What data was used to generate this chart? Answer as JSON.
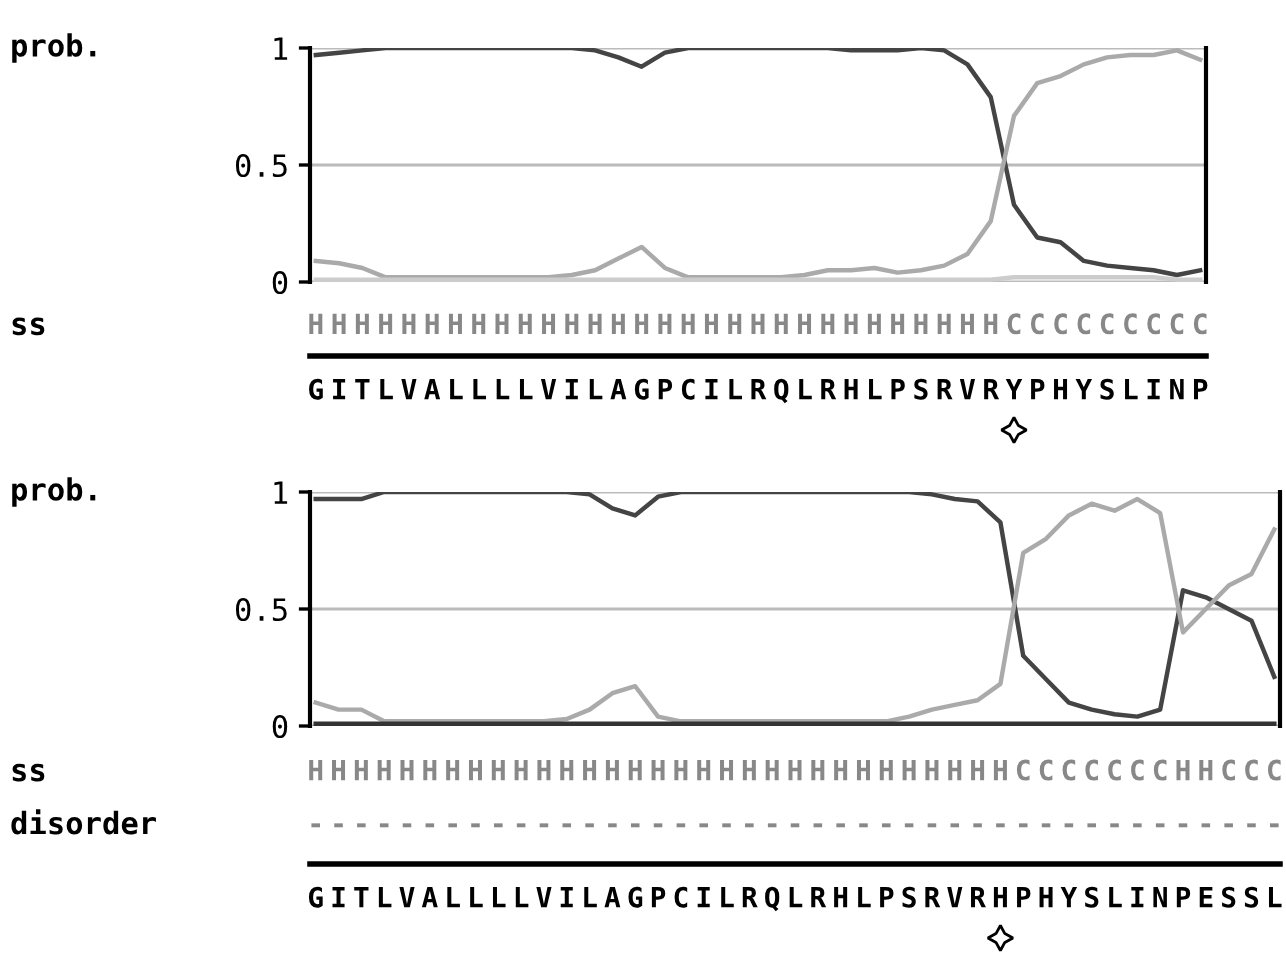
{
  "chart_data": [
    {
      "type": "line",
      "ylabel": "prob.",
      "ylim": [
        0,
        1
      ],
      "yticks": [
        0,
        0.5,
        1
      ],
      "grid": "y",
      "categories": [
        "G",
        "I",
        "T",
        "L",
        "V",
        "A",
        "L",
        "L",
        "L",
        "L",
        "V",
        "I",
        "L",
        "A",
        "G",
        "P",
        "C",
        "I",
        "L",
        "R",
        "Q",
        "L",
        "R",
        "H",
        "L",
        "P",
        "S",
        "R",
        "V",
        "R",
        "Y",
        "P",
        "H",
        "Y",
        "S",
        "L",
        "I",
        "N",
        "P"
      ],
      "series": [
        {
          "color": "#444444",
          "values": [
            0.97,
            0.98,
            0.99,
            1,
            1,
            1,
            1,
            1,
            1,
            1,
            1,
            1,
            0.99,
            0.96,
            0.92,
            0.98,
            1,
            1,
            1,
            1,
            1,
            1,
            1,
            0.99,
            0.99,
            0.99,
            1,
            0.99,
            0.93,
            0.79,
            0.33,
            0.19,
            0.17,
            0.09,
            0.07,
            0.06,
            0.05,
            0.03,
            0.05
          ]
        },
        {
          "color": "#aaaaaa",
          "values": [
            0.09,
            0.08,
            0.06,
            0.02,
            0.02,
            0.02,
            0.02,
            0.02,
            0.02,
            0.02,
            0.02,
            0.03,
            0.05,
            0.1,
            0.15,
            0.06,
            0.02,
            0.02,
            0.02,
            0.02,
            0.02,
            0.03,
            0.05,
            0.05,
            0.06,
            0.04,
            0.05,
            0.07,
            0.12,
            0.26,
            0.71,
            0.85,
            0.88,
            0.93,
            0.96,
            0.97,
            0.97,
            0.99,
            0.95
          ]
        },
        {
          "color": "#cccccc",
          "values": [
            0.01,
            0.01,
            0.01,
            0.01,
            0.01,
            0.01,
            0.01,
            0.01,
            0.01,
            0.01,
            0.01,
            0.01,
            0.01,
            0.01,
            0.01,
            0.01,
            0.01,
            0.01,
            0.01,
            0.01,
            0.01,
            0.01,
            0.01,
            0.01,
            0.01,
            0.01,
            0.01,
            0.01,
            0.01,
            0.01,
            0.02,
            0.02,
            0.02,
            0.02,
            0.02,
            0.02,
            0.02,
            0.01,
            0.01
          ]
        }
      ],
      "annotations": [
        "ss",
        "HHHHHHHHHHHHHHHHHHHHHHHHHHHHHHCCCCCCCCC"
      ]
    },
    {
      "type": "line",
      "ylabel": "prob.",
      "ylim": [
        0,
        1
      ],
      "yticks": [
        0,
        0.5,
        1
      ],
      "grid": "y",
      "categories": [
        "G",
        "I",
        "T",
        "L",
        "V",
        "A",
        "L",
        "L",
        "L",
        "L",
        "V",
        "I",
        "L",
        "A",
        "G",
        "P",
        "C",
        "I",
        "L",
        "R",
        "Q",
        "L",
        "R",
        "H",
        "L",
        "P",
        "S",
        "R",
        "V",
        "R",
        "H",
        "P",
        "H",
        "Y",
        "S",
        "L",
        "I",
        "N",
        "P",
        "E",
        "S",
        "S",
        "L"
      ],
      "series": [
        {
          "color": "#444444",
          "values": [
            0.97,
            0.97,
            0.97,
            1,
            1,
            1,
            1,
            1,
            1,
            1,
            1,
            1,
            0.99,
            0.93,
            0.9,
            0.98,
            1,
            1,
            1,
            1,
            1,
            1,
            1,
            1,
            1,
            1,
            1,
            0.99,
            0.97,
            0.96,
            0.87,
            0.3,
            0.2,
            0.1,
            0.07,
            0.05,
            0.04,
            0.07,
            0.58,
            0.55,
            0.5,
            0.45,
            0.21
          ]
        },
        {
          "color": "#aaaaaa",
          "values": [
            0.1,
            0.07,
            0.07,
            0.02,
            0.02,
            0.02,
            0.02,
            0.02,
            0.02,
            0.02,
            0.02,
            0.03,
            0.07,
            0.14,
            0.17,
            0.04,
            0.02,
            0.02,
            0.02,
            0.02,
            0.02,
            0.02,
            0.02,
            0.02,
            0.02,
            0.02,
            0.04,
            0.07,
            0.09,
            0.11,
            0.18,
            0.74,
            0.8,
            0.9,
            0.95,
            0.92,
            0.97,
            0.91,
            0.4,
            0.5,
            0.6,
            0.65,
            0.84
          ]
        },
        {
          "color": "#333333",
          "values": [
            0.01,
            0.01,
            0.01,
            0.01,
            0.01,
            0.01,
            0.01,
            0.01,
            0.01,
            0.01,
            0.01,
            0.01,
            0.01,
            0.01,
            0.01,
            0.01,
            0.01,
            0.01,
            0.01,
            0.01,
            0.01,
            0.01,
            0.01,
            0.01,
            0.01,
            0.01,
            0.01,
            0.01,
            0.01,
            0.01,
            0.01,
            0.01,
            0.01,
            0.01,
            0.01,
            0.01,
            0.01,
            0.01,
            0.01,
            0.01,
            0.01,
            0.01,
            0.01
          ]
        }
      ],
      "annotations": [
        "ss",
        "HHHHHHHHHHHHHHHHHHHHHHHHHHHHHHHCCCCCCCHHCCC",
        "disorder",
        "-------------------------------------------"
      ]
    }
  ]
}
